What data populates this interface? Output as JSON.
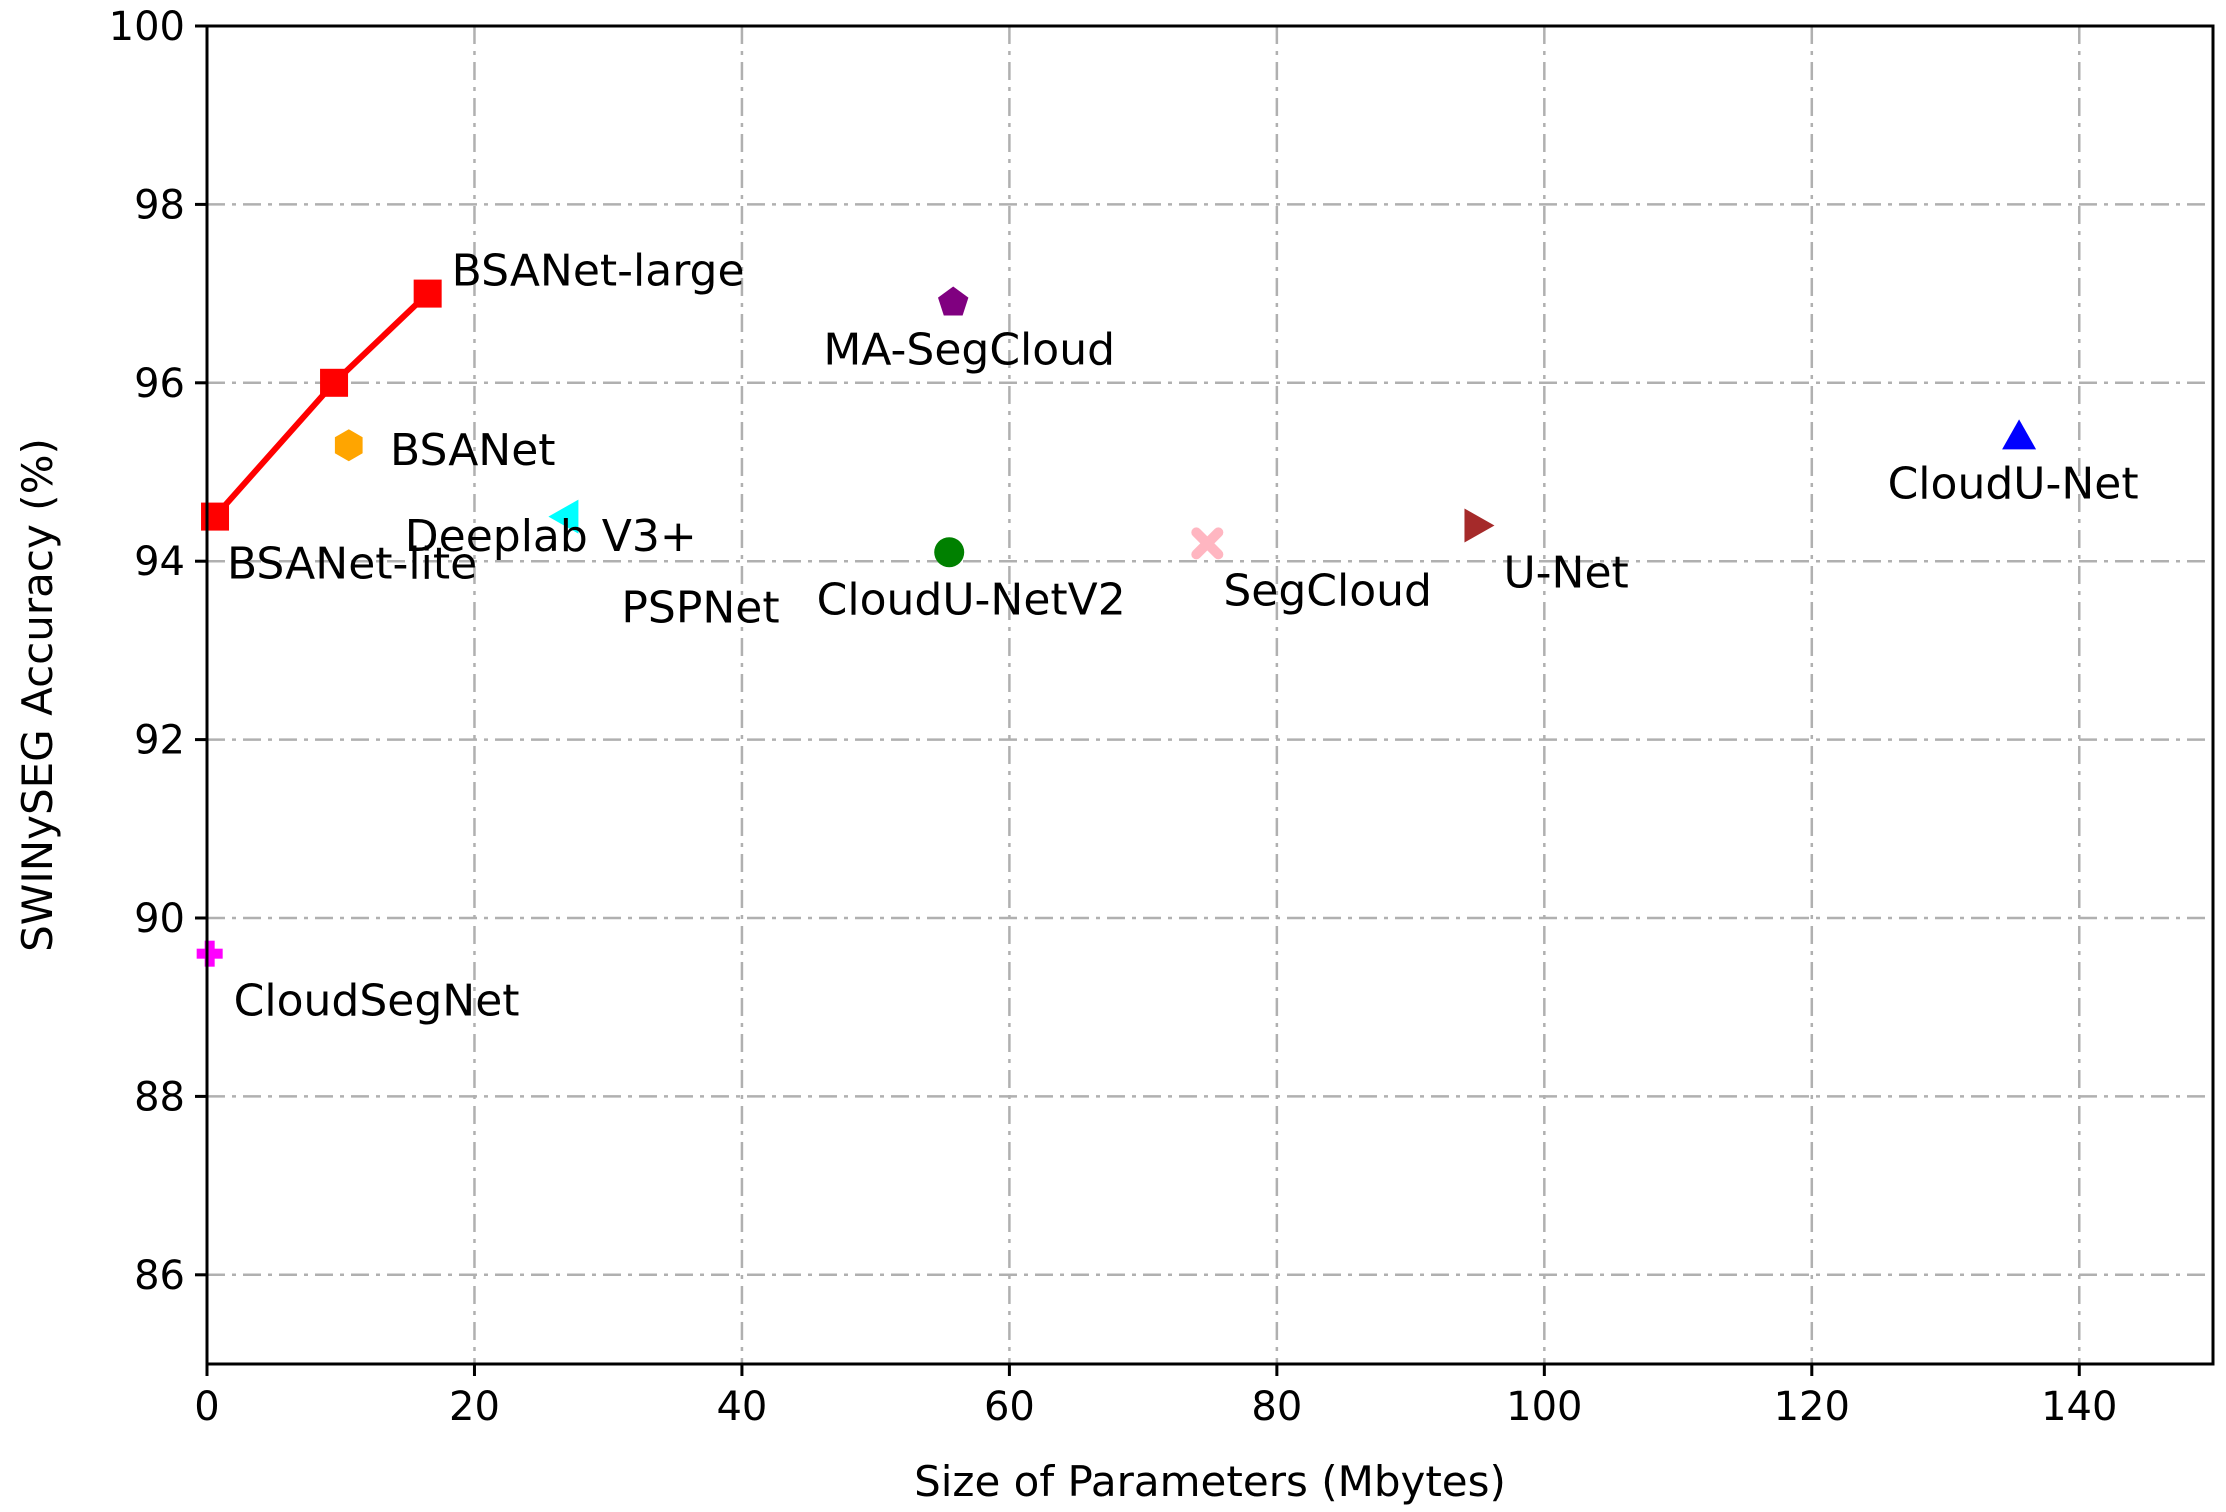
{
  "chart_data": {
    "type": "scatter",
    "xlabel": "Size of Parameters (Mbytes)",
    "ylabel": "SWINySEG Accuracy (%)",
    "xlim": [
      0,
      150
    ],
    "ylim": [
      85,
      100
    ],
    "xticks": [
      0,
      20,
      40,
      60,
      80,
      100,
      120,
      140
    ],
    "yticks": [
      86,
      88,
      90,
      92,
      94,
      96,
      98,
      100
    ],
    "grid": true,
    "line_series": {
      "color": "#ff0000",
      "points": [
        {
          "x": 0.6,
          "y": 94.5
        },
        {
          "x": 9.5,
          "y": 96.0
        },
        {
          "x": 16.5,
          "y": 97.0
        }
      ]
    },
    "points": [
      {
        "name": "BSANet-lite",
        "x": 0.6,
        "y": 94.5,
        "marker": "square",
        "color": "#ff0000",
        "label_anchor": "below-right"
      },
      {
        "name": "BSANet",
        "x": 9.5,
        "y": 96.0,
        "marker": "square",
        "color": "#ff0000",
        "label_anchor": "below-right"
      },
      {
        "name": "BSANet-large",
        "x": 16.5,
        "y": 97.0,
        "marker": "square",
        "color": "#ff0000",
        "label_anchor": "above-right"
      },
      {
        "name": "Deeplab V3+",
        "x": 10.6,
        "y": 95.3,
        "marker": "hexagon",
        "color": "#ffa500",
        "label_anchor": "below-right"
      },
      {
        "name": "PSPNet",
        "x": 26.8,
        "y": 94.5,
        "marker": "triangle-left",
        "color": "#00ffff",
        "label_anchor": "below-right"
      },
      {
        "name": "MA-SegCloud",
        "x": 55.8,
        "y": 96.9,
        "marker": "pentagon",
        "color": "#800080",
        "label_anchor": "below"
      },
      {
        "name": "CloudU-NetV2",
        "x": 55.5,
        "y": 94.1,
        "marker": "circle",
        "color": "#008000",
        "label_anchor": "below"
      },
      {
        "name": "SegCloud",
        "x": 74.8,
        "y": 94.2,
        "marker": "x-filled",
        "color": "#ffb6c1",
        "label_anchor": "below-right"
      },
      {
        "name": "U-Net",
        "x": 95.0,
        "y": 94.4,
        "marker": "triangle-right",
        "color": "#a52a2a",
        "label_anchor": "below-right"
      },
      {
        "name": "CloudU-Net",
        "x": 135.5,
        "y": 95.4,
        "marker": "triangle-up",
        "color": "#0000ff",
        "label_anchor": "below"
      },
      {
        "name": "CloudSegNet",
        "x": 0.2,
        "y": 89.6,
        "marker": "plus-filled",
        "color": "#ff00ff",
        "label_anchor": "below-right"
      }
    ]
  }
}
